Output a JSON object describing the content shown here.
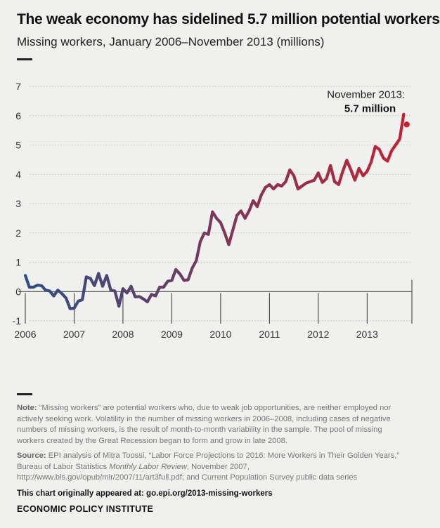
{
  "header": {
    "title": "The weak economy has sidelined 5.7 million potential workers",
    "subtitle": "Missing workers, January 2006–November 2013 (millions)"
  },
  "chart_data": {
    "type": "line",
    "title": "The weak economy has sidelined 5.7 million potential workers",
    "subtitle": "Missing workers, January 2006–November 2013 (millions)",
    "xlabel": "",
    "ylabel": "",
    "ylim": [
      -1,
      7
    ],
    "y_ticks": [
      -1,
      0,
      1,
      2,
      3,
      4,
      5,
      6,
      7
    ],
    "y_tick_labels": [
      "-1",
      "0",
      "1",
      "2",
      "3",
      "4",
      "5",
      "6",
      "7"
    ],
    "x_range": [
      "2006-01",
      "2013-11"
    ],
    "x_ticks": [
      "2006-01",
      "2007-01",
      "2008-01",
      "2009-01",
      "2010-01",
      "2011-01",
      "2012-01",
      "2013-01"
    ],
    "x_tick_labels": [
      "2006",
      "2007",
      "2008",
      "2009",
      "2010",
      "2011",
      "2012",
      "2013"
    ],
    "grid": "horizontal dotted",
    "colors": {
      "start": "#2e4f87",
      "end": "#c8202f",
      "grid": "#bdbdbd",
      "axis": "#333333"
    },
    "series": [
      {
        "x": [
          "2006-01",
          "2006-02",
          "2006-03",
          "2006-04",
          "2006-05",
          "2006-06",
          "2006-07",
          "2006-08",
          "2006-09",
          "2006-10",
          "2006-11",
          "2006-12",
          "2007-01",
          "2007-02",
          "2007-03",
          "2007-04",
          "2007-05",
          "2007-06",
          "2007-07",
          "2007-08",
          "2007-09",
          "2007-10",
          "2007-11",
          "2007-12",
          "2008-01",
          "2008-02",
          "2008-03",
          "2008-04",
          "2008-05",
          "2008-06",
          "2008-07",
          "2008-08",
          "2008-09",
          "2008-10",
          "2008-11",
          "2008-12",
          "2009-01",
          "2009-02",
          "2009-03",
          "2009-04",
          "2009-05",
          "2009-06",
          "2009-07",
          "2009-08",
          "2009-09",
          "2009-10",
          "2009-11",
          "2009-12",
          "2010-01",
          "2010-02",
          "2010-03",
          "2010-04",
          "2010-05",
          "2010-06",
          "2010-07",
          "2010-08",
          "2010-09",
          "2010-10",
          "2010-11",
          "2010-12",
          "2011-01",
          "2011-02",
          "2011-03",
          "2011-04",
          "2011-05",
          "2011-06",
          "2011-07",
          "2011-08",
          "2011-09",
          "2011-10",
          "2011-11",
          "2011-12",
          "2012-01",
          "2012-02",
          "2012-03",
          "2012-04",
          "2012-05",
          "2012-06",
          "2012-07",
          "2012-08",
          "2012-09",
          "2012-10",
          "2012-11",
          "2012-12",
          "2013-01",
          "2013-02",
          "2013-03",
          "2013-04",
          "2013-05",
          "2013-06",
          "2013-07",
          "2013-08",
          "2013-09",
          "2013-10",
          "2013-11"
        ],
        "values": [
          0.55,
          0.15,
          0.15,
          0.22,
          0.2,
          0.05,
          0.02,
          -0.15,
          0.05,
          -0.07,
          -0.22,
          -0.58,
          -0.57,
          -0.33,
          -0.28,
          0.5,
          0.45,
          0.2,
          0.62,
          0.18,
          0.55,
          0.05,
          0.02,
          -0.5,
          0.1,
          -0.05,
          0.18,
          -0.18,
          -0.17,
          -0.25,
          -0.35,
          -0.1,
          -0.15,
          0.15,
          0.15,
          0.35,
          0.38,
          0.75,
          0.6,
          0.38,
          0.4,
          0.8,
          1.05,
          1.7,
          2.0,
          1.95,
          2.72,
          2.5,
          2.35,
          2.0,
          1.6,
          2.1,
          2.6,
          2.75,
          2.5,
          2.75,
          3.1,
          2.9,
          3.3,
          3.55,
          3.65,
          3.5,
          3.65,
          3.6,
          3.75,
          4.15,
          3.95,
          3.5,
          3.6,
          3.7,
          3.75,
          3.8,
          4.05,
          3.72,
          3.85,
          4.3,
          3.75,
          3.65,
          4.1,
          4.48,
          4.15,
          3.8,
          4.2,
          3.95,
          4.1,
          4.42,
          4.95,
          4.85,
          4.55,
          4.45,
          4.8,
          5.0,
          5.2,
          6.05,
          5.7
        ]
      }
    ],
    "annotation": {
      "line1": "November 2013:",
      "line2": "5.7 million",
      "x": "2013-11",
      "y": 5.7
    }
  },
  "footer": {
    "note_label": "Note:",
    "note_text": " “Missing workers” are potential workers who, due to weak job opportunities, are neither employed nor actively seeking work.  Volatility in the number of missing workers in 2006–2008, including cases of negative numbers of missing workers, is the result of month-to-month variability in the sample. The pool of missing workers created by the Great Recession began to form and grow in late 2008.",
    "source_label": "Source:",
    "source_text_1": " EPI analysis of Mitra Toossi, “Labor Force Projections to 2016: More Workers in Their Golden Years,” Bureau of Labor Statistics ",
    "source_journal": "Monthly Labor Review",
    "source_text_2": ", November 2007, http://www.bls.gov/opub/mlr/2007/11/art3full.pdf; and Current Population Survey public data series",
    "credit": "This chart originally appeared at: go.epi.org/2013-missing-workers",
    "org": "ECONOMIC POLICY INSTITUTE"
  }
}
